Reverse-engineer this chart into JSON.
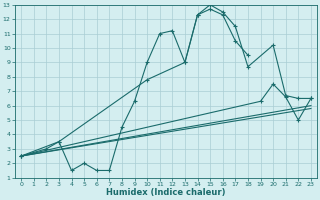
{
  "xlabel": "Humidex (Indice chaleur)",
  "bg_color": "#d4eef0",
  "grid_color": "#aacdd4",
  "line_color": "#1a6b6b",
  "xlim": [
    -0.5,
    23.5
  ],
  "ylim": [
    1,
    13
  ],
  "xticks": [
    0,
    1,
    2,
    3,
    4,
    5,
    6,
    7,
    8,
    9,
    10,
    11,
    12,
    13,
    14,
    15,
    16,
    17,
    18,
    19,
    20,
    21,
    22,
    23
  ],
  "yticks": [
    1,
    2,
    3,
    4,
    5,
    6,
    7,
    8,
    9,
    10,
    11,
    12,
    13
  ],
  "line1_x": [
    0,
    2,
    3,
    10,
    13,
    14,
    15,
    16,
    17,
    18,
    20,
    21,
    22,
    23
  ],
  "line1_y": [
    2.5,
    3.0,
    3.5,
    7.8,
    9.0,
    12.3,
    13.0,
    12.5,
    11.5,
    8.7,
    10.2,
    6.7,
    6.5,
    6.5
  ],
  "line2_x": [
    0,
    3,
    4,
    5,
    6,
    7,
    8,
    9,
    10,
    11,
    12,
    13,
    14,
    15,
    16,
    17,
    18
  ],
  "line2_y": [
    2.5,
    3.5,
    1.5,
    2.0,
    1.5,
    1.5,
    4.5,
    6.3,
    9.0,
    11.0,
    11.2,
    9.0,
    12.3,
    12.7,
    12.3,
    10.5,
    9.5
  ],
  "line3_x": [
    0,
    19,
    20,
    21,
    22,
    23
  ],
  "line3_y": [
    2.5,
    6.3,
    7.5,
    6.6,
    5.0,
    6.5
  ],
  "line4_x": [
    0,
    23
  ],
  "line4_y": [
    2.5,
    6.0
  ],
  "line5_x": [
    0,
    23
  ],
  "line5_y": [
    2.5,
    5.8
  ]
}
